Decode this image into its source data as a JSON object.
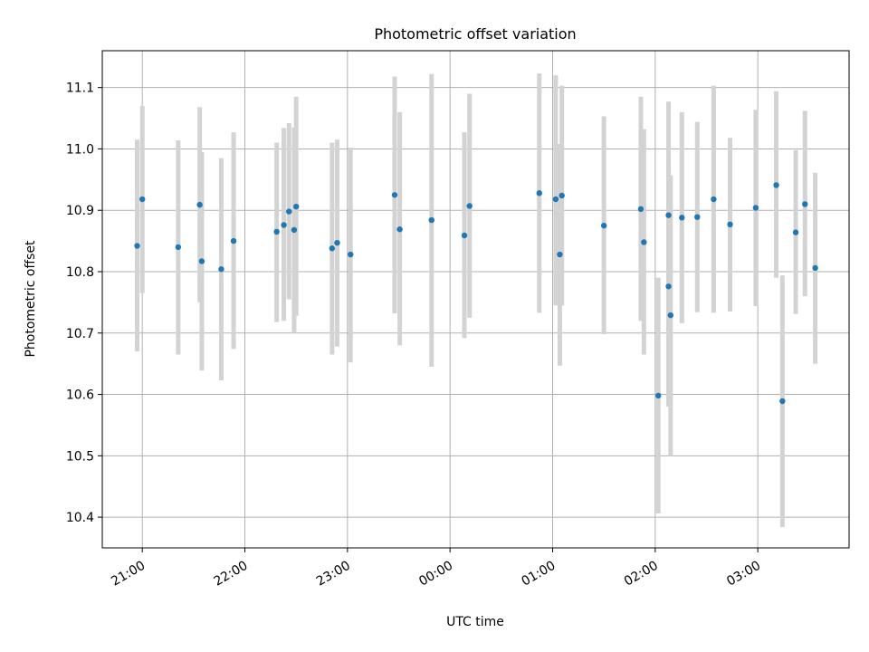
{
  "chart_data": {
    "type": "scatter",
    "title": "Photometric offset variation",
    "xlabel": "UTC time",
    "ylabel": "Photometric offset",
    "x_unit": "UTC clock time, hours past 21:00 on the first night",
    "xlim": [
      -0.39,
      6.89
    ],
    "ylim": [
      10.35,
      11.16
    ],
    "x_ticks": [
      {
        "value": 0,
        "label": "21:00"
      },
      {
        "value": 1,
        "label": "22:00"
      },
      {
        "value": 2,
        "label": "23:00"
      },
      {
        "value": 3,
        "label": "00:00"
      },
      {
        "value": 4,
        "label": "01:00"
      },
      {
        "value": 5,
        "label": "02:00"
      },
      {
        "value": 6,
        "label": "03:00"
      }
    ],
    "y_ticks": [
      {
        "value": 10.4,
        "label": "10.4"
      },
      {
        "value": 10.5,
        "label": "10.5"
      },
      {
        "value": 10.6,
        "label": "10.6"
      },
      {
        "value": 10.7,
        "label": "10.7"
      },
      {
        "value": 10.8,
        "label": "10.8"
      },
      {
        "value": 10.9,
        "label": "10.9"
      },
      {
        "value": 11.0,
        "label": "11.0"
      },
      {
        "value": 11.1,
        "label": "11.1"
      }
    ],
    "grid": true,
    "marker_color": "#1f77b4",
    "errorbar_color": "#d3d3d3",
    "series": [
      {
        "points": [
          {
            "x": -0.05,
            "y": 10.842,
            "err_low": 10.67,
            "err_high": 11.015
          },
          {
            "x": 0.0,
            "y": 10.918,
            "err_low": 10.765,
            "err_high": 11.07
          },
          {
            "x": 0.35,
            "y": 10.84,
            "err_low": 10.665,
            "err_high": 11.014
          },
          {
            "x": 0.56,
            "y": 10.909,
            "err_low": 10.75,
            "err_high": 11.068
          },
          {
            "x": 0.58,
            "y": 10.817,
            "err_low": 10.639,
            "err_high": 10.995
          },
          {
            "x": 0.77,
            "y": 10.804,
            "err_low": 10.623,
            "err_high": 10.985
          },
          {
            "x": 0.89,
            "y": 10.85,
            "err_low": 10.674,
            "err_high": 11.027
          },
          {
            "x": 1.31,
            "y": 10.865,
            "err_low": 10.718,
            "err_high": 11.01
          },
          {
            "x": 1.38,
            "y": 10.876,
            "err_low": 10.72,
            "err_high": 11.034
          },
          {
            "x": 1.43,
            "y": 10.898,
            "err_low": 10.755,
            "err_high": 11.042
          },
          {
            "x": 1.48,
            "y": 10.868,
            "err_low": 10.7,
            "err_high": 11.035
          },
          {
            "x": 1.5,
            "y": 10.906,
            "err_low": 10.728,
            "err_high": 11.085
          },
          {
            "x": 1.85,
            "y": 10.838,
            "err_low": 10.665,
            "err_high": 11.01
          },
          {
            "x": 1.9,
            "y": 10.847,
            "err_low": 10.678,
            "err_high": 11.015
          },
          {
            "x": 2.03,
            "y": 10.828,
            "err_low": 10.652,
            "err_high": 11.002
          },
          {
            "x": 2.46,
            "y": 10.925,
            "err_low": 10.732,
            "err_high": 11.118
          },
          {
            "x": 2.51,
            "y": 10.869,
            "err_low": 10.68,
            "err_high": 11.06
          },
          {
            "x": 2.82,
            "y": 10.884,
            "err_low": 10.645,
            "err_high": 11.122
          },
          {
            "x": 3.14,
            "y": 10.859,
            "err_low": 10.692,
            "err_high": 11.027
          },
          {
            "x": 3.19,
            "y": 10.907,
            "err_low": 10.725,
            "err_high": 11.09
          },
          {
            "x": 3.87,
            "y": 10.928,
            "err_low": 10.733,
            "err_high": 11.123
          },
          {
            "x": 4.03,
            "y": 10.918,
            "err_low": 10.745,
            "err_high": 11.12
          },
          {
            "x": 4.07,
            "y": 10.828,
            "err_low": 10.647,
            "err_high": 11.008
          },
          {
            "x": 4.09,
            "y": 10.924,
            "err_low": 10.745,
            "err_high": 11.103
          },
          {
            "x": 4.5,
            "y": 10.875,
            "err_low": 10.698,
            "err_high": 11.053
          },
          {
            "x": 4.86,
            "y": 10.902,
            "err_low": 10.72,
            "err_high": 11.085
          },
          {
            "x": 4.89,
            "y": 10.848,
            "err_low": 10.665,
            "err_high": 11.032
          },
          {
            "x": 5.03,
            "y": 10.598,
            "err_low": 10.406,
            "err_high": 10.79
          },
          {
            "x": 5.13,
            "y": 10.892,
            "err_low": 10.707,
            "err_high": 11.077
          },
          {
            "x": 5.13,
            "y": 10.776,
            "err_low": 10.58,
            "err_high": 10.972
          },
          {
            "x": 5.15,
            "y": 10.729,
            "err_low": 10.5,
            "err_high": 10.957
          },
          {
            "x": 5.26,
            "y": 10.888,
            "err_low": 10.716,
            "err_high": 11.06
          },
          {
            "x": 5.41,
            "y": 10.889,
            "err_low": 10.734,
            "err_high": 11.044
          },
          {
            "x": 5.57,
            "y": 10.918,
            "err_low": 10.733,
            "err_high": 11.103
          },
          {
            "x": 5.73,
            "y": 10.877,
            "err_low": 10.735,
            "err_high": 11.018
          },
          {
            "x": 5.98,
            "y": 10.904,
            "err_low": 10.744,
            "err_high": 11.064
          },
          {
            "x": 6.18,
            "y": 10.941,
            "err_low": 10.79,
            "err_high": 11.094
          },
          {
            "x": 6.24,
            "y": 10.589,
            "err_low": 10.384,
            "err_high": 10.794
          },
          {
            "x": 6.37,
            "y": 10.864,
            "err_low": 10.731,
            "err_high": 10.998
          },
          {
            "x": 6.46,
            "y": 10.91,
            "err_low": 10.76,
            "err_high": 11.062
          },
          {
            "x": 6.56,
            "y": 10.806,
            "err_low": 10.65,
            "err_high": 10.961
          }
        ]
      }
    ]
  }
}
